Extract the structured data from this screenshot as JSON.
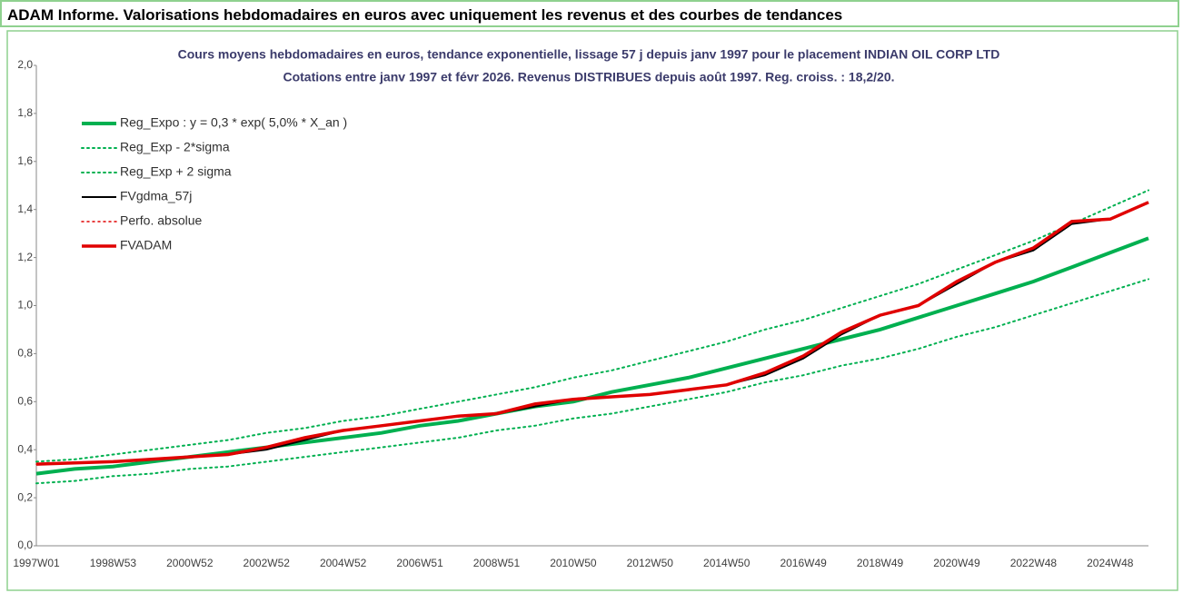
{
  "header": {
    "title": "ADAM Informe. Valorisations hebdomadaires en euros avec uniquement les revenus et des courbes de tendances"
  },
  "chart_data": {
    "type": "line",
    "subtitle": [
      "Cours moyens hebdomadaires en euros, tendance exponentielle, lissage 57 j depuis janv 1997  pour le placement INDIAN OIL CORP LTD",
      "Cotations entre janv 1997 et févr 2026. Revenus DISTRIBUES depuis août 1997. Reg. croiss. : 18,2/20."
    ],
    "categories": [
      "1997W01",
      null,
      "1998W53",
      null,
      "2000W52",
      null,
      "2002W52",
      null,
      "2004W52",
      null,
      "2006W51",
      null,
      "2008W51",
      null,
      "2010W50",
      null,
      "2012W50",
      null,
      "2014W50",
      null,
      "2016W49",
      null,
      "2018W49",
      null,
      "2020W49",
      null,
      "2022W48",
      null,
      "2024W48",
      null
    ],
    "ylim": [
      0,
      2
    ],
    "yticks": [
      {
        "value": 0,
        "label": "0,0"
      },
      {
        "value": 0.2,
        "label": "0,2"
      },
      {
        "value": 0.4,
        "label": "0,4"
      },
      {
        "value": 0.6,
        "label": "0,6"
      },
      {
        "value": 0.8,
        "label": "0,8"
      },
      {
        "value": 1,
        "label": "1,0"
      },
      {
        "value": 1.2,
        "label": "1,2"
      },
      {
        "value": 1.4,
        "label": "1,4"
      },
      {
        "value": 1.6,
        "label": "1,6"
      },
      {
        "value": 1.8,
        "label": "1,8"
      },
      {
        "value": 2,
        "label": "2,0"
      }
    ],
    "grid": false,
    "legend": "top-left",
    "series": [
      {
        "name": "Reg_Expo : y = 0,3 * exp( 5,0% *  X_an )",
        "color": "#00b050",
        "line_width": 4,
        "dashed": false,
        "values": [
          0.3,
          0.32,
          0.33,
          0.35,
          0.37,
          0.39,
          0.41,
          0.43,
          0.45,
          0.47,
          0.5,
          0.52,
          0.55,
          0.58,
          0.6,
          0.64,
          0.67,
          0.7,
          0.74,
          0.78,
          0.82,
          0.86,
          0.9,
          0.95,
          1.0,
          1.05,
          1.1,
          1.16,
          1.22,
          1.28
        ]
      },
      {
        "name": "Reg_Exp - 2*sigma",
        "color": "#00b050",
        "line_width": 2,
        "dashed": true,
        "values": [
          0.26,
          0.27,
          0.29,
          0.3,
          0.32,
          0.33,
          0.35,
          0.37,
          0.39,
          0.41,
          0.43,
          0.45,
          0.48,
          0.5,
          0.53,
          0.55,
          0.58,
          0.61,
          0.64,
          0.68,
          0.71,
          0.75,
          0.78,
          0.82,
          0.87,
          0.91,
          0.96,
          1.01,
          1.06,
          1.11
        ]
      },
      {
        "name": "Reg_Exp + 2 sigma",
        "color": "#00b050",
        "line_width": 2,
        "dashed": true,
        "values": [
          0.35,
          0.36,
          0.38,
          0.4,
          0.42,
          0.44,
          0.47,
          0.49,
          0.52,
          0.54,
          0.57,
          0.6,
          0.63,
          0.66,
          0.7,
          0.73,
          0.77,
          0.81,
          0.85,
          0.9,
          0.94,
          0.99,
          1.04,
          1.09,
          1.15,
          1.21,
          1.27,
          1.34,
          1.41,
          1.48
        ]
      },
      {
        "name": "FVgdma_57j",
        "color": "#000000",
        "line_width": 2,
        "dashed": false,
        "values": [
          0.34,
          0.345,
          0.35,
          0.36,
          0.37,
          0.38,
          0.4,
          0.44,
          0.48,
          0.5,
          0.52,
          0.54,
          0.55,
          0.58,
          0.61,
          0.62,
          0.63,
          0.65,
          0.67,
          0.71,
          0.78,
          0.88,
          0.96,
          1.0,
          1.09,
          1.18,
          1.23,
          1.34,
          1.36,
          1.43
        ]
      },
      {
        "name": "Perfo. absolue",
        "color": "#e00000",
        "line_width": 1.5,
        "dashed": true,
        "values": [
          0.34,
          0.345,
          0.35,
          0.36,
          0.37,
          0.38,
          0.41,
          0.45,
          0.48,
          0.5,
          0.52,
          0.54,
          0.55,
          0.59,
          0.61,
          0.62,
          0.63,
          0.65,
          0.67,
          0.72,
          0.79,
          0.89,
          0.96,
          1.0,
          1.1,
          1.18,
          1.24,
          1.35,
          1.36,
          1.43
        ]
      },
      {
        "name": "FVADAM",
        "color": "#e00000",
        "line_width": 3.5,
        "dashed": false,
        "values": [
          0.34,
          0.345,
          0.35,
          0.36,
          0.37,
          0.38,
          0.41,
          0.45,
          0.48,
          0.5,
          0.52,
          0.54,
          0.55,
          0.59,
          0.61,
          0.62,
          0.63,
          0.65,
          0.67,
          0.72,
          0.79,
          0.89,
          0.96,
          1.0,
          1.1,
          1.18,
          1.24,
          1.35,
          1.36,
          1.43
        ]
      }
    ]
  }
}
